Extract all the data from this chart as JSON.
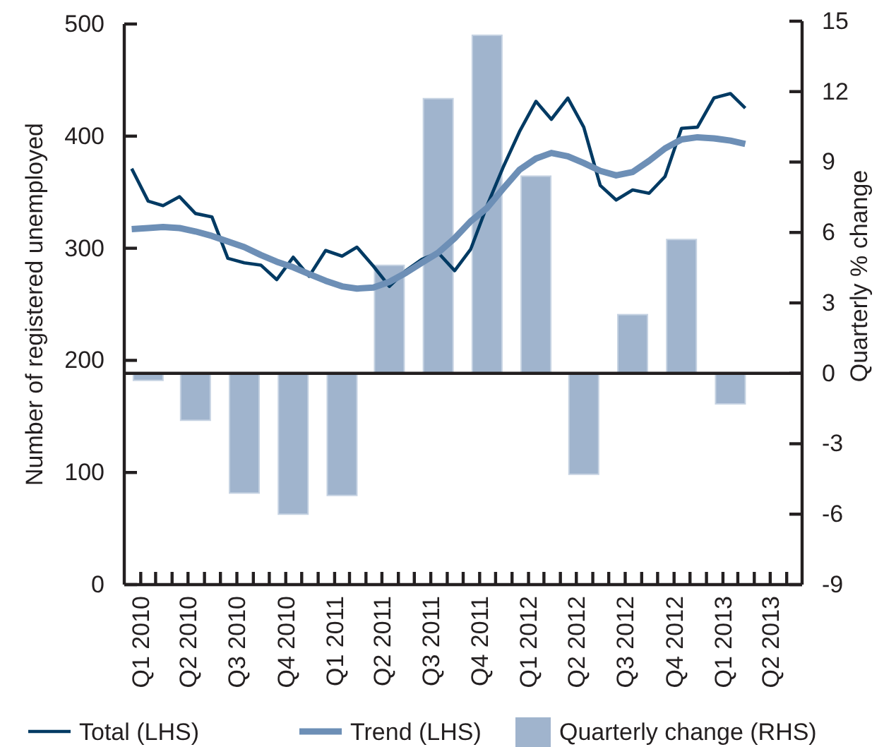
{
  "chart_data": {
    "type": "bar",
    "ylabel": "Number of registered unemployed",
    "y2label": "Quarterly % change",
    "xlim": [
      "2010-01-01",
      "2013-06-30"
    ],
    "xticks": [
      {
        "value": "2010-02-01",
        "label": "Q1 2010"
      },
      {
        "value": "2010-03-01",
        "label": null
      },
      {
        "value": "2010-04-01",
        "label": null
      },
      {
        "value": "2010-05-01",
        "label": "Q2 2010"
      },
      {
        "value": "2010-06-01",
        "label": null
      },
      {
        "value": "2010-07-01",
        "label": null
      },
      {
        "value": "2010-08-01",
        "label": "Q3 2010"
      },
      {
        "value": "2010-09-01",
        "label": null
      },
      {
        "value": "2010-10-01",
        "label": null
      },
      {
        "value": "2010-11-01",
        "label": "Q4 2010"
      },
      {
        "value": "2010-12-01",
        "label": null
      },
      {
        "value": "2011-01-01",
        "label": null
      },
      {
        "value": "2011-02-01",
        "label": "Q1 2011"
      },
      {
        "value": "2011-03-01",
        "label": null
      },
      {
        "value": "2011-04-01",
        "label": null
      },
      {
        "value": "2011-05-01",
        "label": "Q2 2011"
      },
      {
        "value": "2011-06-01",
        "label": null
      },
      {
        "value": "2011-07-01",
        "label": null
      },
      {
        "value": "2011-08-01",
        "label": "Q3 2011"
      },
      {
        "value": "2011-09-01",
        "label": null
      },
      {
        "value": "2011-10-01",
        "label": null
      },
      {
        "value": "2011-11-01",
        "label": "Q4 2011"
      },
      {
        "value": "2011-12-01",
        "label": null
      },
      {
        "value": "2012-01-01",
        "label": null
      },
      {
        "value": "2012-02-01",
        "label": "Q1 2012"
      },
      {
        "value": "2012-03-01",
        "label": null
      },
      {
        "value": "2012-04-01",
        "label": null
      },
      {
        "value": "2012-05-01",
        "label": "Q2 2012"
      },
      {
        "value": "2012-06-01",
        "label": null
      },
      {
        "value": "2012-07-01",
        "label": null
      },
      {
        "value": "2012-08-01",
        "label": "Q3 2012"
      },
      {
        "value": "2012-09-01",
        "label": null
      },
      {
        "value": "2012-10-01",
        "label": null
      },
      {
        "value": "2012-11-01",
        "label": "Q4 2012"
      },
      {
        "value": "2012-12-01",
        "label": null
      },
      {
        "value": "2013-01-01",
        "label": null
      },
      {
        "value": "2013-02-01",
        "label": "Q1 2013"
      },
      {
        "value": "2013-03-01",
        "label": null
      },
      {
        "value": "2013-04-01",
        "label": null
      },
      {
        "value": "2013-05-01",
        "label": "Q2 2013"
      },
      {
        "value": "2013-06-01",
        "label": null
      }
    ],
    "ylim": [
      0,
      500
    ],
    "yticks": [
      0,
      100,
      200,
      300,
      400,
      500
    ],
    "y2lim": [
      -9,
      15
    ],
    "y2ticks": [
      -9,
      -6,
      -3,
      0,
      3,
      6,
      9,
      12,
      15
    ],
    "ref_lines": [
      {
        "axis": "y2",
        "value": 0,
        "color": "#231f20"
      }
    ],
    "legend": "bottom",
    "grid": false,
    "series": [
      {
        "name": "Quarterly change (RHS)",
        "axis": "y2",
        "color": "#a0b4cd",
        "x": [
          "2010-02-15",
          "2010-05-15",
          "2010-08-15",
          "2010-11-15",
          "2011-02-15",
          "2011-05-15",
          "2011-08-15",
          "2011-11-15",
          "2012-02-15",
          "2012-05-15",
          "2012-08-15",
          "2012-11-15",
          "2013-02-15"
        ],
        "values": [
          -0.3,
          -2.0,
          -5.1,
          -6.0,
          -5.2,
          4.6,
          11.7,
          14.4,
          8.4,
          -4.3,
          2.5,
          5.7,
          -1.3
        ]
      },
      {
        "name": "Total (LHS)",
        "type": "line",
        "axis": "y",
        "color": "#003a63",
        "x": [
          "2010-01-15",
          "2010-02-15",
          "2010-03-15",
          "2010-04-15",
          "2010-05-15",
          "2010-06-15",
          "2010-07-15",
          "2010-08-15",
          "2010-09-15",
          "2010-10-15",
          "2010-11-15",
          "2010-12-15",
          "2011-01-15",
          "2011-02-15",
          "2011-03-15",
          "2011-04-15",
          "2011-05-15",
          "2011-06-15",
          "2011-07-15",
          "2011-08-15",
          "2011-09-15",
          "2011-10-15",
          "2011-11-15",
          "2011-12-15",
          "2012-01-15",
          "2012-02-15",
          "2012-03-15",
          "2012-04-15",
          "2012-05-15",
          "2012-06-15",
          "2012-07-15",
          "2012-08-15",
          "2012-09-15",
          "2012-10-15",
          "2012-11-15",
          "2012-12-15",
          "2013-01-15",
          "2013-02-15",
          "2013-03-15"
        ],
        "values": [
          371,
          342,
          338,
          346,
          331,
          328,
          291,
          287,
          285,
          272,
          292,
          275,
          298,
          293,
          301,
          284,
          266,
          280,
          290,
          296,
          280,
          299,
          338,
          372,
          404,
          431,
          415,
          434,
          408,
          356,
          343,
          352,
          349,
          364,
          407,
          408,
          434,
          438,
          425
        ]
      },
      {
        "name": "Trend (LHS)",
        "type": "line",
        "axis": "y",
        "color": "#6d8fb6",
        "x": [
          "2010-01-15",
          "2010-02-15",
          "2010-03-15",
          "2010-04-15",
          "2010-05-15",
          "2010-06-15",
          "2010-07-15",
          "2010-08-15",
          "2010-09-15",
          "2010-10-15",
          "2010-11-15",
          "2010-12-15",
          "2011-01-15",
          "2011-02-15",
          "2011-03-15",
          "2011-04-15",
          "2011-05-15",
          "2011-06-15",
          "2011-07-15",
          "2011-08-15",
          "2011-09-15",
          "2011-10-15",
          "2011-11-15",
          "2011-12-15",
          "2012-01-15",
          "2012-02-15",
          "2012-03-15",
          "2012-04-15",
          "2012-05-15",
          "2012-06-15",
          "2012-07-15",
          "2012-08-15",
          "2012-09-15",
          "2012-10-15",
          "2012-11-15",
          "2012-12-15",
          "2013-01-15",
          "2013-02-15",
          "2013-03-15"
        ],
        "values": [
          317,
          318,
          319,
          318,
          315,
          311,
          306,
          301,
          294,
          288,
          283,
          277,
          271,
          266,
          264,
          265,
          270,
          278,
          287,
          296,
          309,
          324,
          336,
          353,
          370,
          380,
          385,
          382,
          376,
          369,
          365,
          368,
          378,
          389,
          397,
          399,
          398,
          396,
          393
        ]
      }
    ]
  }
}
